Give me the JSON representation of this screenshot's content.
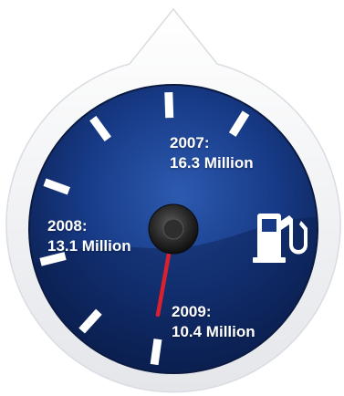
{
  "readings": [
    {
      "year": "2007:",
      "value": "16.3 Million",
      "amount": 16.3
    },
    {
      "year": "2008:",
      "value": "13.1 Million",
      "amount": 13.1
    },
    {
      "year": "2009:",
      "value": "10.4 Million",
      "amount": 10.4
    }
  ],
  "icon": "fuel-pump-icon",
  "colors": {
    "dial_dark": "#0b1f4f",
    "dial_mid": "#173a86",
    "dial_light": "#2d5ab0",
    "bezel": "#f5f6f8",
    "needle": "#d8202e",
    "ticks": "#ffffff"
  }
}
